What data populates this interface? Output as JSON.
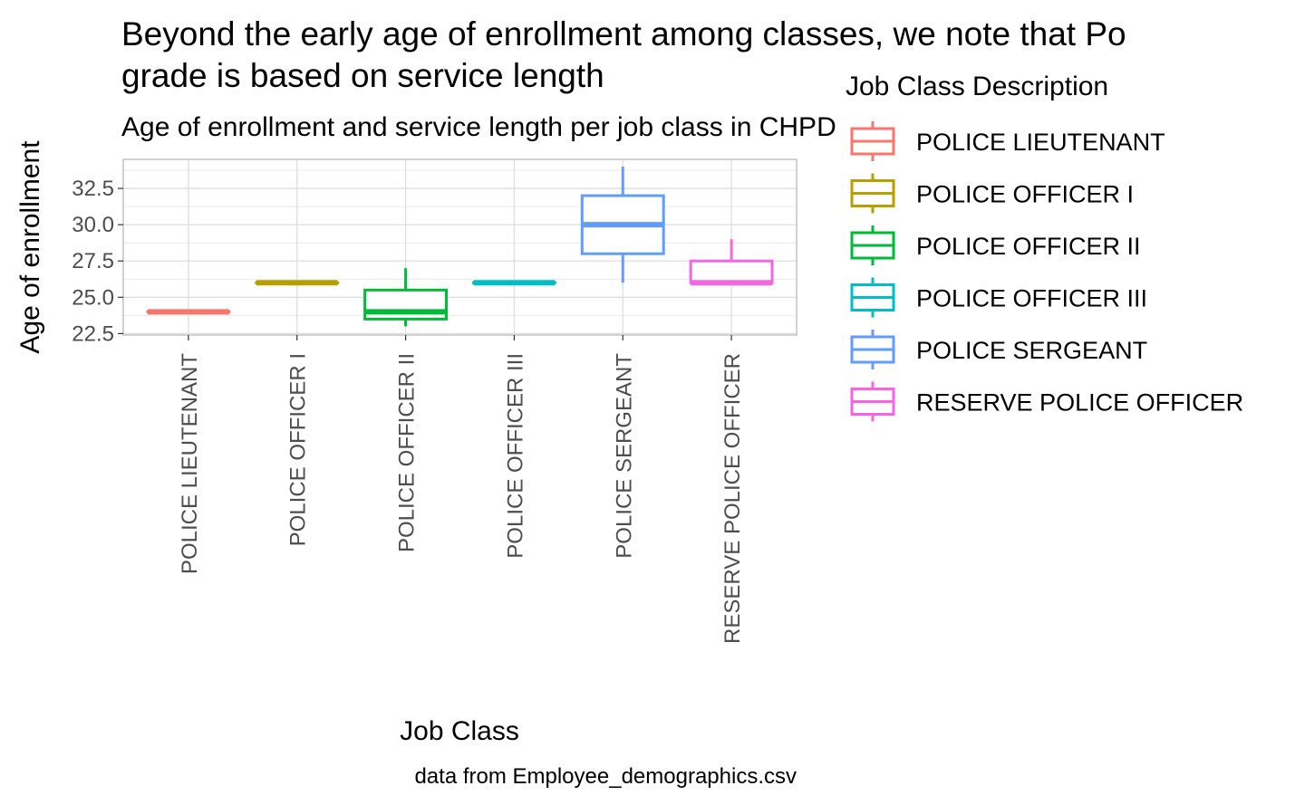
{
  "chart_data": {
    "type": "boxplot",
    "title_line1": "Beyond the early age of enrollment among classes, we note that Po",
    "title_line2": "grade is based on service length",
    "subtitle": "Age of enrollment and service length per job class in CHPD",
    "xlabel": "Job Class",
    "ylabel": "Age of enrollment",
    "caption": "data from Employee_demographics.csv",
    "ylim": [
      22.4,
      34.5
    ],
    "yticks": [
      22.5,
      25.0,
      27.5,
      30.0,
      32.5
    ],
    "ytick_labels": [
      "22.5",
      "25.0",
      "27.5",
      "30.0",
      "32.5"
    ],
    "grid": true,
    "legend": {
      "title": "Job Class Description",
      "placement": "right"
    },
    "categories": [
      "POLICE LIEUTENANT",
      "POLICE OFFICER I",
      "POLICE OFFICER II",
      "POLICE OFFICER III",
      "POLICE SERGEANT",
      "RESERVE POLICE OFFICER"
    ],
    "boxes": [
      {
        "name": "POLICE LIEUTENANT",
        "color": "#F8766D",
        "min": 24,
        "q1": 24,
        "median": 24,
        "q3": 24,
        "max": 24
      },
      {
        "name": "POLICE OFFICER I",
        "color": "#B79F00",
        "min": 26,
        "q1": 26,
        "median": 26,
        "q3": 26,
        "max": 26
      },
      {
        "name": "POLICE OFFICER II",
        "color": "#00BA38",
        "min": 23,
        "q1": 23.5,
        "median": 24,
        "q3": 25.5,
        "max": 27
      },
      {
        "name": "POLICE OFFICER III",
        "color": "#00BFC4",
        "min": 26,
        "q1": 26,
        "median": 26,
        "q3": 26,
        "max": 26
      },
      {
        "name": "POLICE SERGEANT",
        "color": "#619CFF",
        "min": 26,
        "q1": 28,
        "median": 30,
        "q3": 32,
        "max": 34
      },
      {
        "name": "RESERVE POLICE OFFICER",
        "color": "#F564E3",
        "min": 26,
        "q1": 26,
        "median": 26,
        "q3": 27.5,
        "max": 29
      }
    ]
  }
}
